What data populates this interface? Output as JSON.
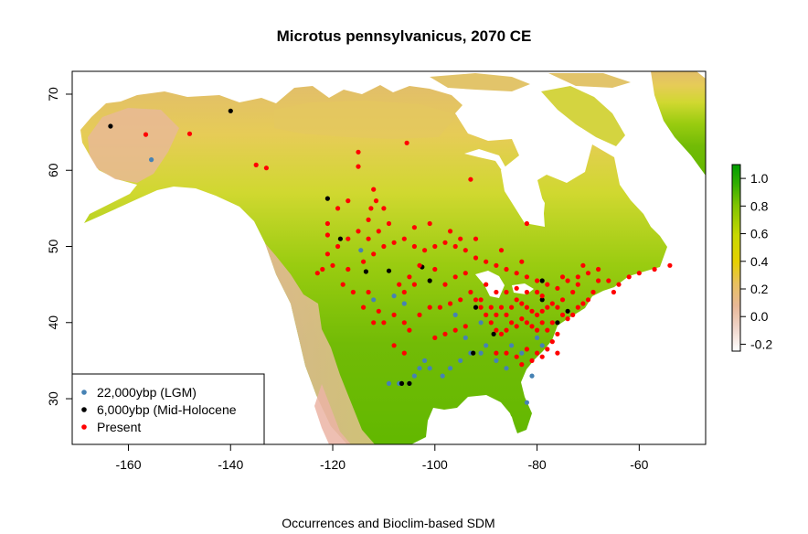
{
  "title": "Microtus pennsylvanicus, 2070 CE",
  "xlabel": "Occurrences and Bioclim-based SDM",
  "x_ticks": [
    "-160",
    "-140",
    "-120",
    "-100",
    "-80",
    "-60"
  ],
  "y_ticks": [
    "30",
    "40",
    "50",
    "60",
    "70"
  ],
  "colorbar": {
    "ticks": [
      "1.0",
      "0.8",
      "0.6",
      "0.4",
      "0.2",
      "0.0",
      "-0.2"
    ],
    "colors": [
      "#00a000",
      "#40b400",
      "#8cc800",
      "#c8d800",
      "#e6d400",
      "#e8c060",
      "#e8b890",
      "#f2e2dc",
      "#ffffff"
    ]
  },
  "legend": {
    "items": [
      {
        "label": "22,000ybp (LGM)",
        "color": "#4682b4"
      },
      {
        "label": "6,000ybp (Mid-Holocene",
        "color": "#000000"
      },
      {
        "label": "Present",
        "color": "#ff0000"
      }
    ]
  },
  "chart_data": {
    "type": "scatter",
    "title": "Microtus pennsylvanicus, 2070 CE",
    "xlabel": "Occurrences and Bioclim-based SDM",
    "ylabel": "",
    "xlim": [
      -171,
      -47
    ],
    "ylim": [
      24,
      73
    ],
    "legend_position": "bottom-left",
    "colorbar_range": [
      -0.25,
      1.1
    ],
    "series": [
      {
        "name": "22,000ybp (LGM)",
        "color": "#4682b4",
        "points": [
          [
            -155.5,
            61.4
          ],
          [
            -114.5,
            49.5
          ],
          [
            -112,
            43
          ],
          [
            -108,
            43.5
          ],
          [
            -106,
            42.5
          ],
          [
            -104,
            33
          ],
          [
            -103,
            34
          ],
          [
            -102,
            35
          ],
          [
            -101,
            34
          ],
          [
            -98.5,
            33
          ],
          [
            -97,
            34
          ],
          [
            -95,
            35
          ],
          [
            -93,
            36
          ],
          [
            -91,
            36
          ],
          [
            -90,
            37
          ],
          [
            -94,
            38
          ],
          [
            -96,
            41
          ],
          [
            -91,
            40
          ],
          [
            -85,
            37
          ],
          [
            -83,
            36
          ],
          [
            -81,
            33
          ],
          [
            -82,
            29.5
          ],
          [
            -80,
            38
          ],
          [
            -79,
            37
          ],
          [
            -88,
            35
          ],
          [
            -86,
            34
          ],
          [
            -105,
            32
          ],
          [
            -107,
            32
          ],
          [
            -109,
            32
          ]
        ]
      },
      {
        "name": "6,000ybp (Mid-Holocene",
        "color": "#000000",
        "points": [
          [
            -163.5,
            65.8
          ],
          [
            -140,
            67.8
          ],
          [
            -121,
            56.3
          ],
          [
            -118.5,
            51
          ],
          [
            -113.5,
            46.7
          ],
          [
            -109,
            46.8
          ],
          [
            -102.5,
            47.3
          ],
          [
            -101,
            45.5
          ],
          [
            -106.5,
            32
          ],
          [
            -105,
            32
          ],
          [
            -92.5,
            36
          ],
          [
            -92,
            42
          ],
          [
            -88.5,
            38.5
          ],
          [
            -79,
            43
          ],
          [
            -76,
            40
          ],
          [
            -74,
            41.5
          ],
          [
            -79,
            45.5
          ]
        ]
      },
      {
        "name": "Present",
        "color": "#ff0000",
        "points": [
          [
            -156.6,
            64.7
          ],
          [
            -148,
            64.8
          ],
          [
            -135,
            60.7
          ],
          [
            -133,
            60.3
          ],
          [
            -115,
            62.4
          ],
          [
            -105.5,
            63.6
          ],
          [
            -93,
            58.8
          ],
          [
            -82,
            53
          ],
          [
            -112,
            57.5
          ],
          [
            -111.5,
            56
          ],
          [
            -110,
            55
          ],
          [
            -112.5,
            55
          ],
          [
            -113,
            53.5
          ],
          [
            -111,
            52
          ],
          [
            -115,
            52
          ],
          [
            -117,
            51
          ],
          [
            -119,
            50
          ],
          [
            -121,
            49
          ],
          [
            -122,
            47
          ],
          [
            -123,
            46.5
          ],
          [
            -120,
            47.5
          ],
          [
            -117,
            47
          ],
          [
            -114,
            48
          ],
          [
            -112,
            49
          ],
          [
            -110,
            50
          ],
          [
            -108,
            50.5
          ],
          [
            -106,
            51
          ],
          [
            -104,
            50
          ],
          [
            -102,
            49.5
          ],
          [
            -100,
            50
          ],
          [
            -98,
            50.5
          ],
          [
            -96,
            50
          ],
          [
            -94,
            49.5
          ],
          [
            -92,
            48.5
          ],
          [
            -90,
            48
          ],
          [
            -88,
            47.5
          ],
          [
            -86,
            47
          ],
          [
            -84,
            46.5
          ],
          [
            -82,
            46
          ],
          [
            -80,
            45.5
          ],
          [
            -78,
            45
          ],
          [
            -76,
            44.5
          ],
          [
            -74,
            45.5
          ],
          [
            -72,
            46
          ],
          [
            -70,
            46.5
          ],
          [
            -68,
            47
          ],
          [
            -66,
            45.5
          ],
          [
            -64,
            45
          ],
          [
            -62,
            46
          ],
          [
            -60,
            46.5
          ],
          [
            -57,
            47
          ],
          [
            -54,
            47.5
          ],
          [
            -110,
            40
          ],
          [
            -108,
            41
          ],
          [
            -106,
            40
          ],
          [
            -105,
            39
          ],
          [
            -103,
            41
          ],
          [
            -101,
            42
          ],
          [
            -99,
            42
          ],
          [
            -97,
            42.5
          ],
          [
            -95,
            43
          ],
          [
            -93,
            44
          ],
          [
            -91,
            43
          ],
          [
            -89,
            42
          ],
          [
            -88,
            41
          ],
          [
            -87,
            42
          ],
          [
            -86,
            41
          ],
          [
            -85,
            42
          ],
          [
            -84,
            43
          ],
          [
            -83,
            42.5
          ],
          [
            -82,
            42
          ],
          [
            -81,
            41.5
          ],
          [
            -80,
            41
          ],
          [
            -79,
            41.5
          ],
          [
            -78,
            42
          ],
          [
            -77,
            42.5
          ],
          [
            -76,
            42
          ],
          [
            -75,
            41
          ],
          [
            -74,
            40.5
          ],
          [
            -73,
            41
          ],
          [
            -72,
            42
          ],
          [
            -71,
            42.5
          ],
          [
            -70,
            43
          ],
          [
            -69,
            44
          ],
          [
            -75,
            43
          ],
          [
            -77,
            40
          ],
          [
            -78,
            39
          ],
          [
            -79,
            40
          ],
          [
            -80,
            39
          ],
          [
            -81,
            39.5
          ],
          [
            -82,
            40
          ],
          [
            -83,
            40.5
          ],
          [
            -84,
            39.5
          ],
          [
            -85,
            40
          ],
          [
            -86,
            39
          ],
          [
            -87,
            38.5
          ],
          [
            -88,
            39
          ],
          [
            -89,
            40
          ],
          [
            -90,
            41
          ],
          [
            -91,
            42
          ],
          [
            -92,
            43
          ],
          [
            -80,
            44
          ],
          [
            -79,
            43.5
          ],
          [
            -82,
            44
          ],
          [
            -84,
            44.5
          ],
          [
            -86,
            44
          ],
          [
            -88,
            44
          ],
          [
            -90,
            45
          ],
          [
            -76,
            38.5
          ],
          [
            -77,
            37.5
          ],
          [
            -78,
            36.5
          ],
          [
            -80,
            36
          ],
          [
            -82,
            36.5
          ],
          [
            -84,
            35.5
          ],
          [
            -86,
            36
          ],
          [
            -83,
            34.5
          ],
          [
            -81,
            35
          ],
          [
            -79,
            35.5
          ],
          [
            -76,
            36
          ],
          [
            -104,
            45
          ],
          [
            -106,
            44
          ],
          [
            -107,
            45
          ],
          [
            -105,
            46
          ],
          [
            -103,
            47.5
          ],
          [
            -100,
            47
          ],
          [
            -98,
            45
          ],
          [
            -96,
            46
          ],
          [
            -94,
            46.5
          ],
          [
            -118,
            45
          ],
          [
            -116,
            44
          ],
          [
            -113,
            44
          ],
          [
            -111,
            41.5
          ],
          [
            -112,
            40
          ],
          [
            -114,
            42
          ],
          [
            -108,
            37
          ],
          [
            -106,
            36
          ],
          [
            -100,
            38
          ],
          [
            -98,
            38.5
          ],
          [
            -96,
            39
          ],
          [
            -94,
            39.5
          ],
          [
            -88,
            36
          ],
          [
            -119,
            55
          ],
          [
            -121,
            53
          ],
          [
            -117,
            56
          ],
          [
            -109,
            53
          ],
          [
            -72,
            45
          ],
          [
            -73,
            44
          ],
          [
            -68,
            45.5
          ],
          [
            -65,
            44
          ],
          [
            -75,
            46
          ],
          [
            -71,
            47.5
          ],
          [
            -83,
            48
          ],
          [
            -87,
            49.5
          ],
          [
            -95,
            51
          ],
          [
            -97,
            52
          ],
          [
            -92,
            51
          ],
          [
            -101,
            53
          ],
          [
            -104,
            52.5
          ],
          [
            -113,
            51
          ],
          [
            -121,
            51.5
          ],
          [
            -115,
            60.5
          ]
        ]
      }
    ]
  }
}
